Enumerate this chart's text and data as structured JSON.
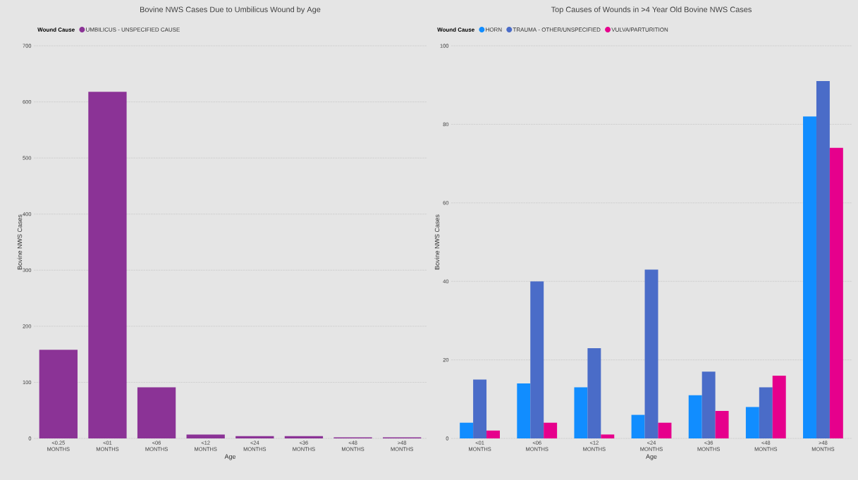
{
  "chart_data": [
    {
      "type": "bar",
      "title": "Bovine NWS Cases Due to Umbilicus Wound by Age",
      "xlabel": "Age",
      "ylabel": "Bovine NWS Cases",
      "legend_title": "Wound Cause",
      "categories": [
        "<0.25 MONTHS",
        "<01 MONTHS",
        "<06 MONTHS",
        "<12 MONTHS",
        "<24 MONTHS",
        "<36 MONTHS",
        "<48 MONTHS",
        ">48 MONTHS"
      ],
      "series": [
        {
          "name": "UMBILICUS - UNSPECIFIED CAUSE",
          "color": "#8b3396",
          "values": [
            158,
            618,
            91,
            7,
            4,
            4,
            2,
            2
          ]
        }
      ],
      "ylim": [
        0,
        700
      ],
      "yticks": [
        0,
        100,
        200,
        300,
        400,
        500,
        600,
        700
      ],
      "grid": "y",
      "legend": "top left"
    },
    {
      "type": "bar",
      "title": "Top Causes of Wounds in >4 Year Old Bovine NWS Cases",
      "xlabel": "Age",
      "ylabel": "Bovine NWS Cases",
      "legend_title": "Wound Cause",
      "categories": [
        "<01 MONTHS",
        "<06 MONTHS",
        "<12 MONTHS",
        "<24 MONTHS",
        "<36 MONTHS",
        "<48 MONTHS",
        ">48 MONTHS"
      ],
      "series": [
        {
          "name": "HORN",
          "color": "#118dff",
          "values": [
            4,
            14,
            13,
            6,
            11,
            8,
            82
          ]
        },
        {
          "name": "TRAUMA - OTHER/UNSPECIFIED",
          "color": "#4a6cc8",
          "values": [
            15,
            40,
            23,
            43,
            17,
            13,
            91
          ]
        },
        {
          "name": "VULVA/PARTURITION",
          "color": "#e6008c",
          "values": [
            2,
            4,
            1,
            4,
            7,
            16,
            74
          ]
        }
      ],
      "ylim": [
        0,
        100
      ],
      "yticks": [
        0,
        20,
        40,
        60,
        80,
        100
      ],
      "grid": "y",
      "legend": "top left"
    }
  ]
}
